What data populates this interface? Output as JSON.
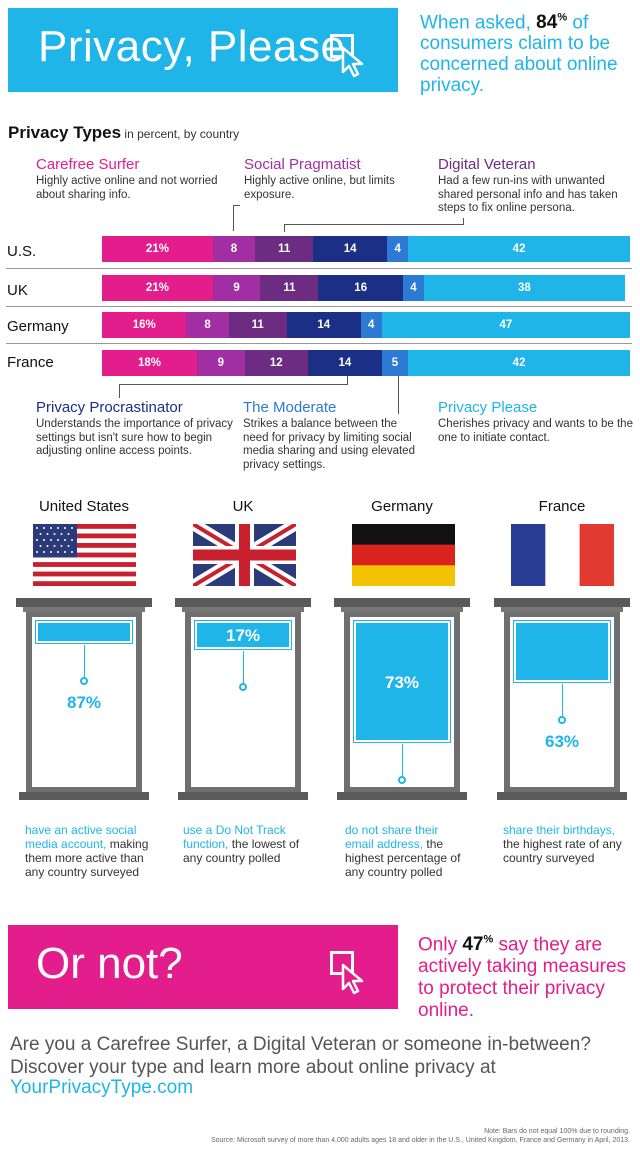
{
  "header": {
    "title": "Privacy, Please",
    "stat_prefix": "When asked, ",
    "stat_number": "84",
    "stat_sup": "%",
    "stat_suffix": " of consumers claim to be concerned about online privacy."
  },
  "types_heading": {
    "title": "Privacy Types",
    "subtitle": " in percent, by country"
  },
  "types": {
    "carefree": {
      "name": "Carefree Surfer",
      "desc": "Highly active online and not worried about sharing info.",
      "color": "#e41d8c"
    },
    "pragmatist": {
      "name": "Social Pragmatist",
      "desc": "Highly active online, but limits exposure.",
      "color": "#a22ea3"
    },
    "veteran": {
      "name": "Digital Veteran",
      "desc": "Had a few run-ins with unwanted shared personal info and has taken steps to fix online persona.",
      "color": "#6b2c82"
    },
    "procrastinator": {
      "name": "Privacy Procrastinator",
      "desc": "Understands the importance of privacy settings but isn't sure how to begin adjusting online access points.",
      "color": "#1b2f86"
    },
    "moderate": {
      "name": "The Moderate",
      "desc": "Strikes a balance between the need for privacy by limiting social media sharing and using elevated privacy settings.",
      "color": "#2c7ad4"
    },
    "please": {
      "name": "Privacy Please",
      "desc": "Cherishes privacy and wants to be the one to initiate contact.",
      "color": "#1fb5e8"
    }
  },
  "rows": [
    {
      "country": "U.S.",
      "values": [
        "21%",
        "8",
        "11",
        "14",
        "4",
        "42"
      ]
    },
    {
      "country": "UK",
      "values": [
        "21%",
        "9",
        "11",
        "16",
        "4",
        "38"
      ]
    },
    {
      "country": "Germany",
      "values": [
        "16%",
        "8",
        "11",
        "14",
        "4",
        "47"
      ]
    },
    {
      "country": "France",
      "values": [
        "18%",
        "9",
        "12",
        "14",
        "5",
        "42"
      ]
    }
  ],
  "chart_data": {
    "type": "bar",
    "title": "Privacy Types",
    "subtitle": "in percent, by country",
    "categories": [
      "U.S.",
      "UK",
      "Germany",
      "France"
    ],
    "stacked": true,
    "series": [
      {
        "name": "Carefree Surfer",
        "values": [
          21,
          21,
          16,
          18
        ]
      },
      {
        "name": "Social Pragmatist",
        "values": [
          8,
          9,
          8,
          9
        ]
      },
      {
        "name": "Digital Veteran",
        "values": [
          11,
          11,
          11,
          12
        ]
      },
      {
        "name": "Privacy Procrastinator",
        "values": [
          14,
          16,
          14,
          14
        ]
      },
      {
        "name": "The Moderate",
        "values": [
          4,
          4,
          4,
          5
        ]
      },
      {
        "name": "Privacy Please",
        "values": [
          42,
          38,
          47,
          42
        ]
      }
    ]
  },
  "windows": [
    {
      "country": "United States",
      "stat": "87%",
      "shade_fill": 0.13,
      "text_inside": false,
      "caption_hl": "have an active social media account,",
      "caption_rest": " making them more active than any country surveyed"
    },
    {
      "country": "UK",
      "stat": "17%",
      "shade_fill": 0.17,
      "text_inside": true,
      "caption_hl": "use a Do Not Track function,",
      "caption_rest": " the lowest of any country polled"
    },
    {
      "country": "Germany",
      "stat": "73%",
      "shade_fill": 0.73,
      "text_inside": true,
      "caption_hl": "do not share their email address,",
      "caption_rest": " the highest percentage of any country polled"
    },
    {
      "country": "France",
      "stat": "63%",
      "shade_fill": 0.37,
      "text_inside": false,
      "caption_hl": "share their birthdays,",
      "caption_rest": " the highest rate of any country surveyed"
    }
  ],
  "ornot": {
    "title": "Or not?",
    "stat_prefix": "Only ",
    "stat_number": "47",
    "stat_sup": "%",
    "stat_suffix": " say they are actively taking measures to protect their privacy online."
  },
  "cta": {
    "text": "Are you a Carefree Surfer, a Digital Veteran or someone in-between? Discover your type and learn more about online privacy at",
    "link": "YourPrivacyType.com"
  },
  "footer": {
    "note": "Note: Bars do not equal 100% due to rounding.",
    "source": "Source: Microsoft survey of more than 4,000 adults ages 18 and older in the U.S., United Kingdom, France and Germany in April, 2013."
  },
  "icons": [
    "cursor-click-icon",
    "flag-us-icon",
    "flag-uk-icon",
    "flag-germany-icon",
    "flag-france-icon"
  ]
}
